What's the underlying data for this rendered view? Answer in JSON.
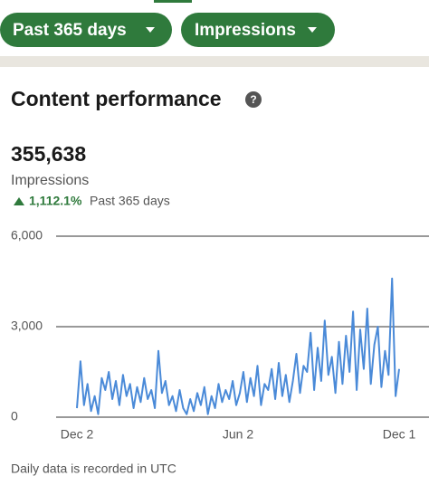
{
  "controls": {
    "range": "Past 365 days",
    "metric": "Impressions"
  },
  "header": {
    "title": "Content performance"
  },
  "summary": {
    "total": "355,638",
    "label": "Impressions",
    "change": "1,112.1%",
    "period": "Past 365 days"
  },
  "chart_data": {
    "type": "line",
    "color": "#4a8ad8",
    "grid": true,
    "x": [
      0,
      4,
      8,
      12,
      16,
      20,
      24,
      28,
      32,
      36,
      40,
      44,
      48,
      52,
      56,
      60,
      64,
      68,
      72,
      76,
      80,
      84,
      88,
      92,
      96,
      100,
      104,
      108,
      112,
      116,
      120,
      124,
      128,
      132,
      136,
      140,
      144,
      148,
      152,
      156,
      160,
      164,
      168,
      172,
      176,
      180,
      184,
      188,
      192,
      196,
      200,
      204,
      208,
      212,
      216,
      220,
      224,
      228,
      232,
      236,
      240,
      244,
      248,
      252,
      256,
      260,
      264,
      268,
      272,
      276,
      280,
      284,
      288,
      292,
      296,
      300,
      304,
      308,
      312,
      316,
      320,
      324,
      328,
      332,
      336,
      340,
      344,
      348,
      352,
      356,
      360,
      364
    ],
    "values": [
      300,
      1850,
      400,
      1100,
      200,
      700,
      100,
      1300,
      900,
      1500,
      600,
      1200,
      400,
      1400,
      700,
      1100,
      300,
      1000,
      500,
      1300,
      600,
      900,
      300,
      2200,
      800,
      1200,
      400,
      700,
      200,
      900,
      300,
      100,
      600,
      200,
      800,
      400,
      1000,
      100,
      700,
      300,
      1100,
      500,
      900,
      600,
      1200,
      400,
      800,
      1500,
      500,
      1300,
      700,
      1700,
      400,
      1100,
      900,
      1600,
      600,
      1800,
      700,
      1400,
      500,
      1200,
      2100,
      800,
      1700,
      1500,
      2800,
      900,
      2300,
      1200,
      3200,
      1400,
      2000,
      800,
      2500,
      1100,
      2700,
      1500,
      3500,
      900,
      2900,
      1600,
      3600,
      1100,
      2400,
      3000,
      1000,
      2200,
      1400,
      4600,
      700,
      1600
    ],
    "xlim": [
      0,
      364
    ],
    "xticks": [
      {
        "value": 0,
        "label": "Dec 2"
      },
      {
        "value": 182,
        "label": "Jun 2"
      },
      {
        "value": 364,
        "label": "Dec 1"
      }
    ],
    "ylim": [
      0,
      6000
    ],
    "yticks": [
      0,
      {
        "value": 3000,
        "label": "3,000"
      },
      {
        "value": 6000,
        "label": "6,000"
      }
    ]
  },
  "footer": "Daily data is recorded in UTC"
}
